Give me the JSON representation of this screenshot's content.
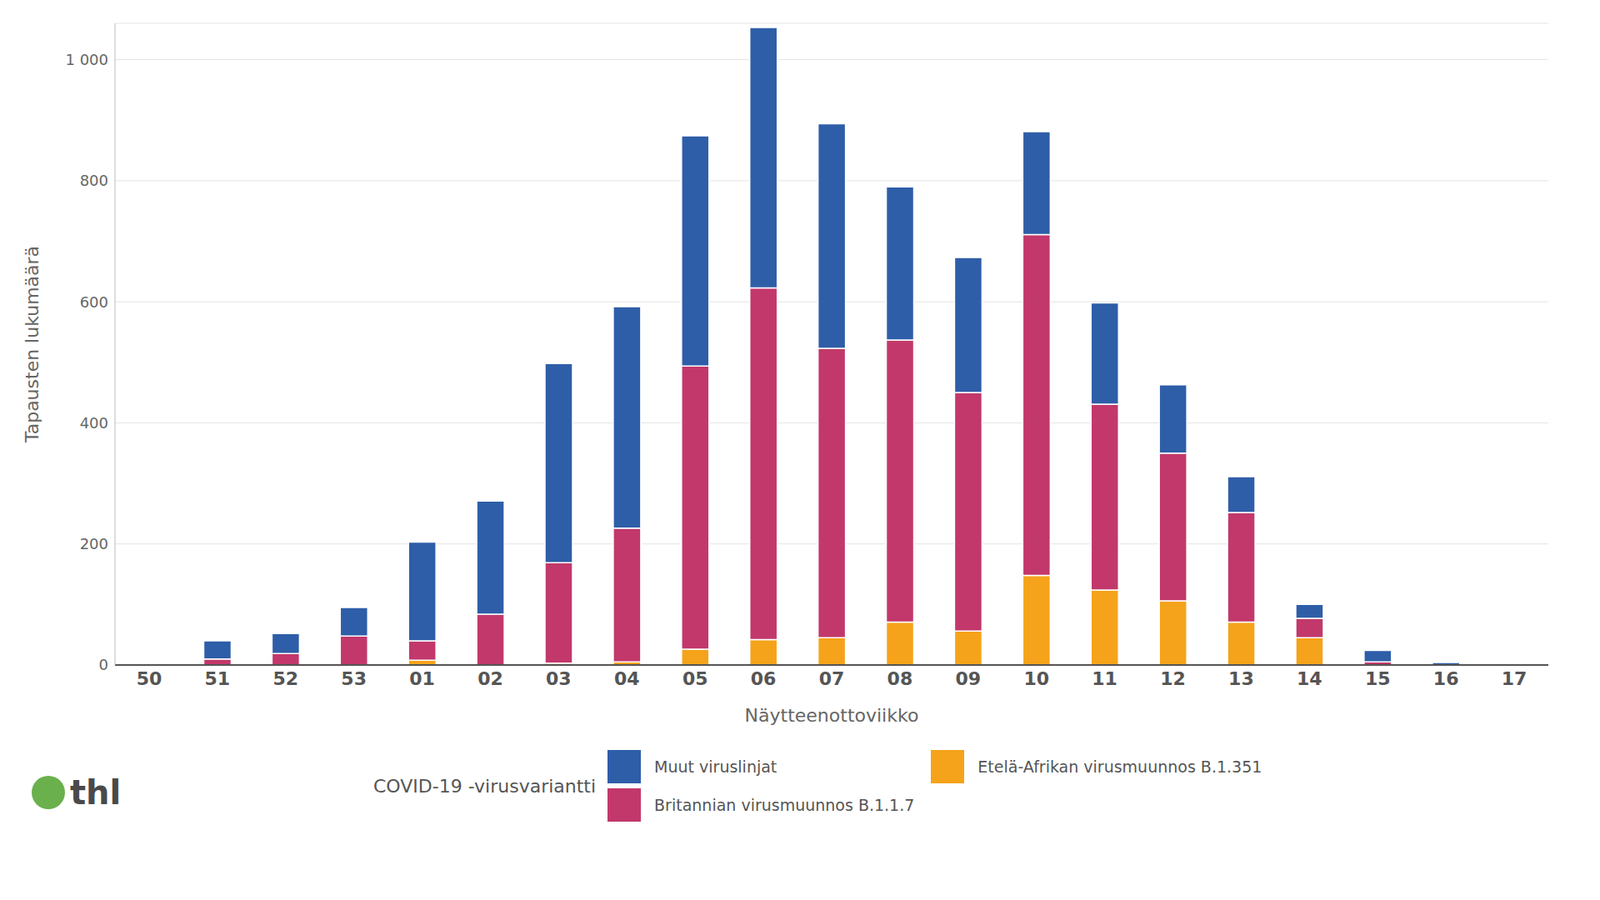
{
  "chart_data": {
    "type": "bar",
    "stacked": true,
    "grid": true,
    "x_label": "Näytteenottoviikko",
    "y_label": "Tapausten lukumäärä",
    "legend_title": "COVID-19 -virusvariantti",
    "logo": "thl",
    "categories": [
      "50",
      "51",
      "52",
      "53",
      "01",
      "02",
      "03",
      "04",
      "05",
      "06",
      "07",
      "08",
      "09",
      "10",
      "11",
      "12",
      "13",
      "14",
      "15",
      "16",
      "17"
    ],
    "series": [
      {
        "name": "Muut viruslinjat",
        "color": "#2e5ea8",
        "values": [
          0,
          30,
          33,
          47,
          163,
          187,
          329,
          366,
          380,
          430,
          371,
          253,
          223,
          170,
          167,
          113,
          59,
          23,
          19,
          4,
          0
        ]
      },
      {
        "name": "Britannian virusmuunnos B.1.1.7",
        "color": "#c2386b",
        "values": [
          0,
          10,
          19,
          48,
          32,
          84,
          166,
          221,
          468,
          581,
          478,
          466,
          394,
          563,
          307,
          244,
          181,
          32,
          5,
          0,
          0
        ]
      },
      {
        "name": "Etelä-Afrikan virusmuunnos B.1.351",
        "color": "#f5a31a",
        "values": [
          0,
          0,
          0,
          0,
          8,
          0,
          3,
          5,
          26,
          42,
          45,
          71,
          56,
          148,
          124,
          106,
          71,
          45,
          0,
          0,
          0
        ]
      }
    ],
    "ylim": [
      0,
      1060
    ],
    "yticks": [
      0,
      200,
      400,
      600,
      800,
      {
        "value": 1000,
        "label": "1 000"
      }
    ]
  }
}
